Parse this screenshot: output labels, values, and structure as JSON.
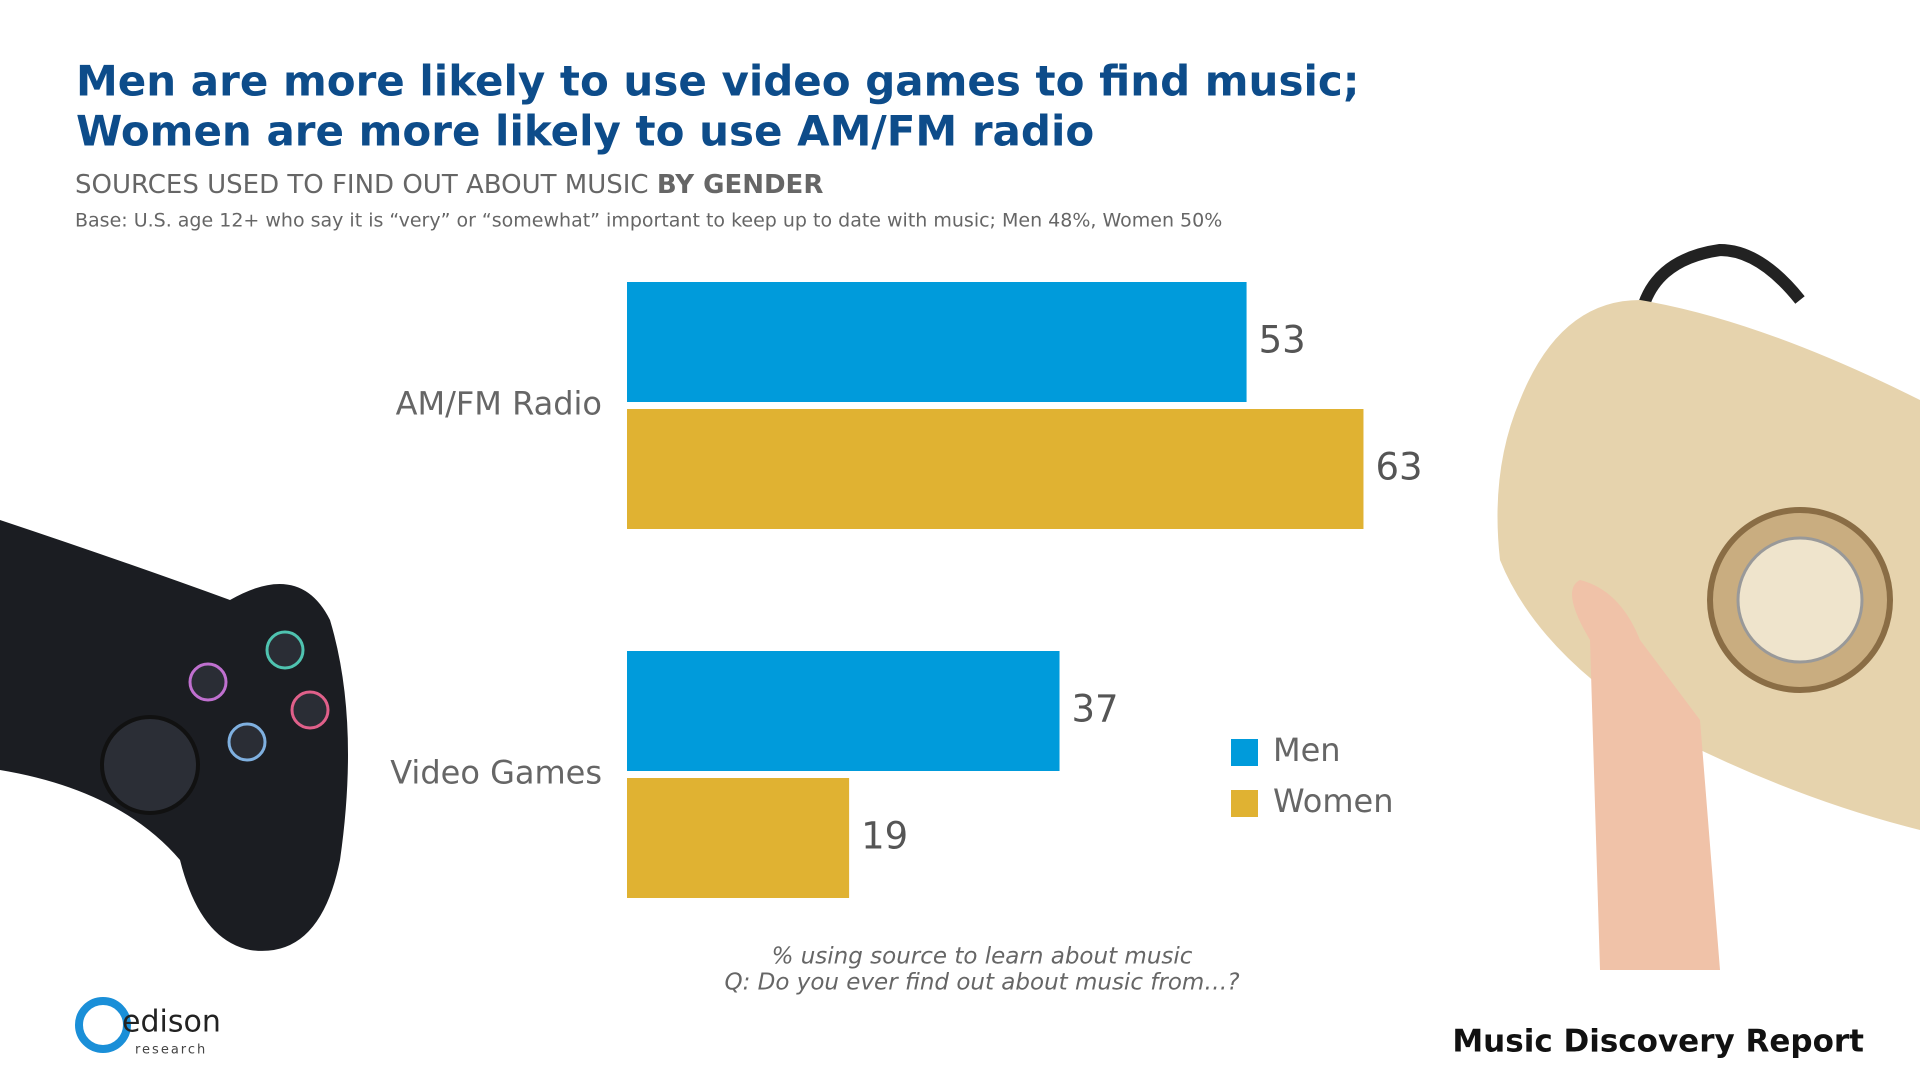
{
  "chart_data": {
    "type": "barh",
    "title": [
      "Men are more likely to use video games to find music;",
      "Women are more likely to use AM/FM radio"
    ],
    "subtitle": {
      "text": "SOURCES USED TO FIND OUT ABOUT MUSIC",
      "emphasis": "BY GENDER"
    },
    "base_note": "Base: U.S. age 12+ who say it is “very” or “somewhat” important to keep up to date with music; Men 48%, Women 50%",
    "categories": [
      "AM/FM Radio",
      "Video Games"
    ],
    "series": [
      {
        "name": "Men",
        "color": "#009bdb",
        "values": [
          53,
          37
        ]
      },
      {
        "name": "Women",
        "color": "#e0b232",
        "values": [
          63,
          19
        ]
      }
    ],
    "xlim": [
      0,
      100
    ],
    "footnotes": [
      "% using source to learn about music",
      "Q: Do you ever find out about music from…?"
    ],
    "logo": {
      "name": "edison",
      "tagline": "research"
    },
    "report_name": "Music Discovery Report"
  }
}
